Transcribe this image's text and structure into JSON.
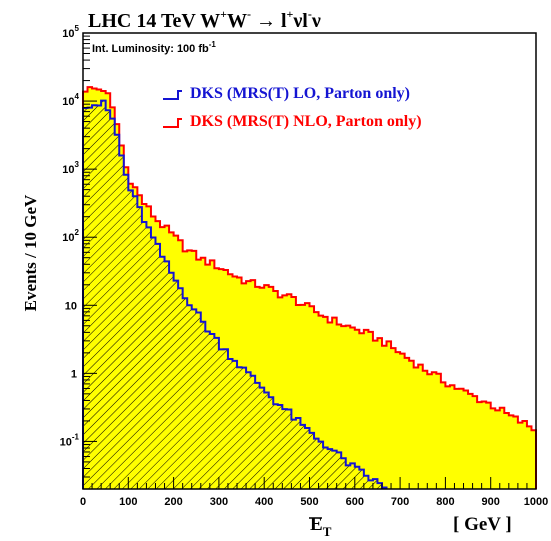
{
  "chart_data": {
    "type": "histogram",
    "title_parts": {
      "prefix": "LHC  14 TeV  W",
      "plus": "+",
      "w2": "W",
      "minus": "-",
      "arrow": " → l",
      "plus2": "+",
      "nu": "νl",
      "minus2": "-",
      "nu2": "ν"
    },
    "ylabel": "Events / 10 GeV",
    "xlabel_main": "E",
    "xlabel_sub": "T",
    "xlabel_unit": "[ GeV ]",
    "luminosity_text": "Int. Luminosity: 100 fb",
    "luminosity_sup": "-1",
    "x_ticks": [
      "0",
      "100",
      "200",
      "300",
      "400",
      "500",
      "600",
      "700",
      "800",
      "900",
      "1000"
    ],
    "y_ticks": [
      {
        "base": "10",
        "exp": "-1",
        "value": 0.1
      },
      {
        "base": "1",
        "exp": "",
        "value": 1
      },
      {
        "base": "10",
        "exp": "",
        "value": 10
      },
      {
        "base": "10",
        "exp": "2",
        "value": 100
      },
      {
        "base": "10",
        "exp": "3",
        "value": 1000
      },
      {
        "base": "10",
        "exp": "4",
        "value": 10000
      },
      {
        "base": "10",
        "exp": "5",
        "value": 100000
      }
    ],
    "xlim": [
      0,
      1000
    ],
    "ylim": [
      0.02,
      100000
    ],
    "log_y": true,
    "bin_width": 10,
    "series": [
      {
        "name": "DKS (MRS(T) NLO, Parton only)",
        "color": "#ff0000",
        "fill": "#ffff00",
        "points": [
          [
            5,
            15000
          ],
          [
            50,
            15000
          ],
          [
            70,
            6000
          ],
          [
            80,
            3500
          ],
          [
            90,
            1400
          ],
          [
            100,
            800
          ],
          [
            130,
            350
          ],
          [
            160,
            190
          ],
          [
            190,
            120
          ],
          [
            230,
            65
          ],
          [
            260,
            48
          ],
          [
            300,
            37
          ],
          [
            340,
            26
          ],
          [
            370,
            21
          ],
          [
            400,
            19
          ],
          [
            430,
            15
          ],
          [
            460,
            13
          ],
          [
            500,
            9
          ],
          [
            540,
            6.5
          ],
          [
            580,
            5
          ],
          [
            620,
            4
          ],
          [
            660,
            3
          ],
          [
            700,
            2
          ],
          [
            750,
            1.2
          ],
          [
            800,
            0.75
          ],
          [
            850,
            0.5
          ],
          [
            900,
            0.35
          ],
          [
            950,
            0.22
          ],
          [
            1000,
            0.15
          ]
        ]
      },
      {
        "name": "DKS (MRS(T) LO, Parton only)",
        "color": "#1414d2",
        "hatch": true,
        "points": [
          [
            5,
            9000
          ],
          [
            45,
            9000
          ],
          [
            60,
            6500
          ],
          [
            70,
            4500
          ],
          [
            80,
            2200
          ],
          [
            90,
            1100
          ],
          [
            100,
            600
          ],
          [
            120,
            300
          ],
          [
            150,
            110
          ],
          [
            180,
            45
          ],
          [
            210,
            20
          ],
          [
            240,
            10
          ],
          [
            270,
            5
          ],
          [
            300,
            2.8
          ],
          [
            330,
            1.7
          ],
          [
            360,
            1.05
          ],
          [
            390,
            0.68
          ],
          [
            420,
            0.42
          ],
          [
            450,
            0.28
          ],
          [
            480,
            0.18
          ],
          [
            510,
            0.12
          ],
          [
            540,
            0.085
          ],
          [
            570,
            0.058
          ],
          [
            600,
            0.04
          ],
          [
            630,
            0.03
          ],
          [
            660,
            0.022
          ],
          [
            670,
            0.02
          ]
        ]
      }
    ]
  }
}
